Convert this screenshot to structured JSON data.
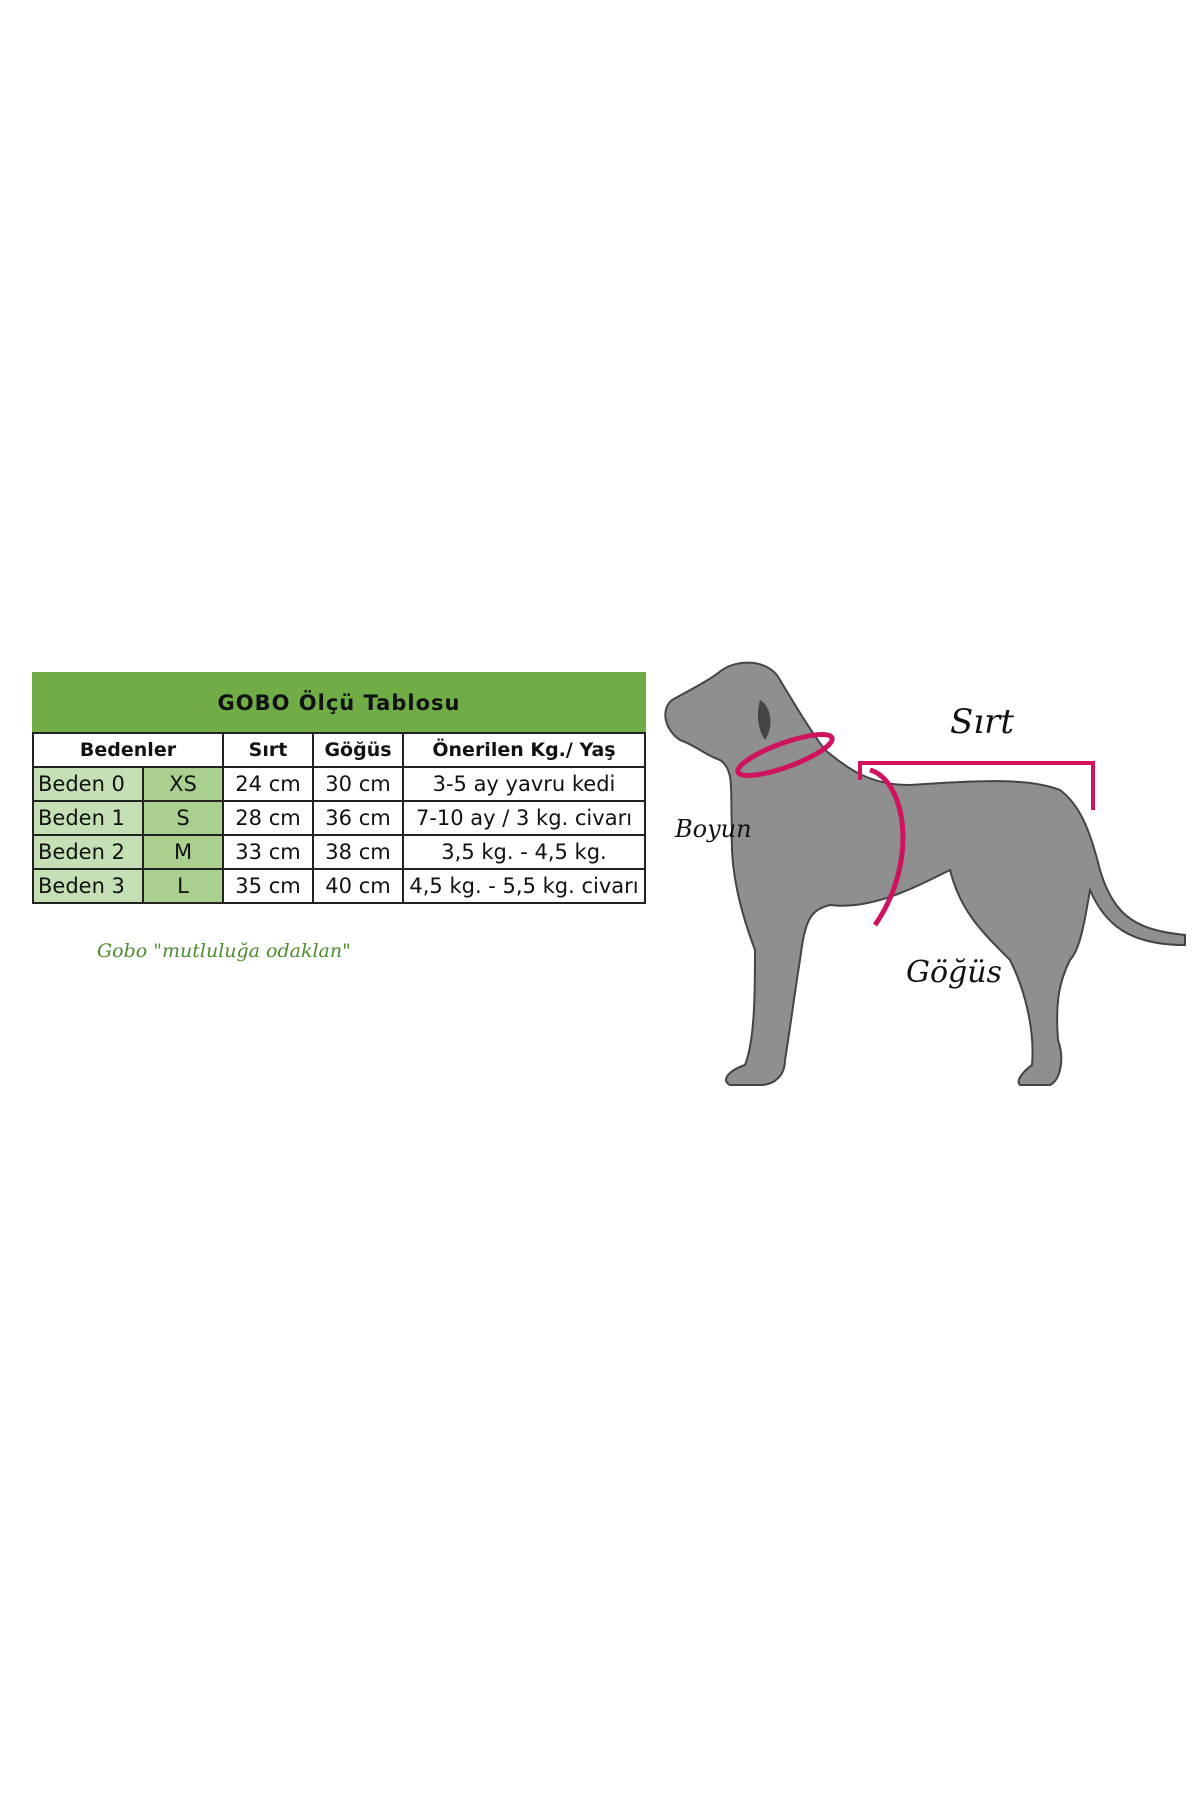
{
  "table": {
    "title": "GOBO Ölçü Tablosu",
    "headers": [
      "Bedenler",
      "Sırt",
      "Göğüs",
      "Önerilen Kg./ Yaş"
    ],
    "rows": [
      {
        "name": "Beden 0",
        "size": "XS",
        "back": "24 cm",
        "chest": "30 cm",
        "recommended": "3-5 ay yavru kedi"
      },
      {
        "name": "Beden 1",
        "size": "S",
        "back": "28 cm",
        "chest": "36 cm",
        "recommended": "7-10 ay / 3 kg. civarı"
      },
      {
        "name": "Beden 2",
        "size": "M",
        "back": "33 cm",
        "chest": "38 cm",
        "recommended": "3,5 kg. - 4,5 kg."
      },
      {
        "name": "Beden 3",
        "size": "L",
        "back": "35 cm",
        "chest": "40 cm",
        "recommended": "4,5 kg. - 5,5 kg. civarı"
      }
    ]
  },
  "slogan": "Gobo \"mutluluğa odaklan\"",
  "diagram": {
    "labels": {
      "back": "Sırt",
      "neck": "Boyun",
      "chest": "Göğüs"
    },
    "colors": {
      "accent": "#d0135f",
      "dog": "#8f8f8f",
      "title_green": "#70ad47"
    }
  }
}
